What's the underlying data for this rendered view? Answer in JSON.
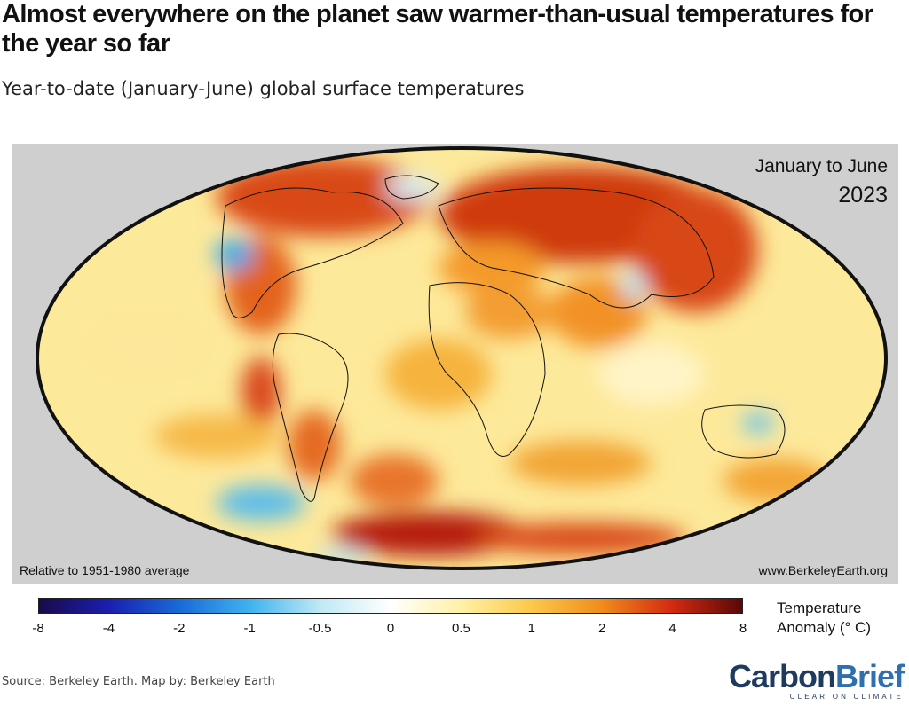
{
  "header": {
    "title": "Almost everywhere on the planet saw warmer-than-usual temperatures for the year so far",
    "subtitle": "Year-to-date (January-June) global surface temperatures"
  },
  "map": {
    "period_label": "January to June",
    "year": "2023",
    "baseline_note": "Relative to 1951-1980 average",
    "credit_url": "www.BerkeleyEarth.org",
    "projection": "Mollweide",
    "background_color": "#cfcfcf"
  },
  "legend": {
    "title_line1": "Temperature",
    "title_line2": "Anomaly (° C)",
    "ticks": [
      "-8",
      "-4",
      "-2",
      "-1",
      "-0.5",
      "0",
      "0.5",
      "1",
      "2",
      "4",
      "8"
    ],
    "colors": [
      "#1a0a4a",
      "#1a1fb0",
      "#1a6ad8",
      "#3fb3ef",
      "#bfe9f5",
      "#ffffff",
      "#fff1a6",
      "#fbc94a",
      "#f08c1c",
      "#d42a10",
      "#5a0808"
    ]
  },
  "footer": {
    "source": "Source: Berkeley Earth. Map by: Berkeley Earth",
    "brand_part1": "Carbon",
    "brand_part2": "Brief",
    "brand_tagline": "CLEAR ON CLIMATE"
  }
}
